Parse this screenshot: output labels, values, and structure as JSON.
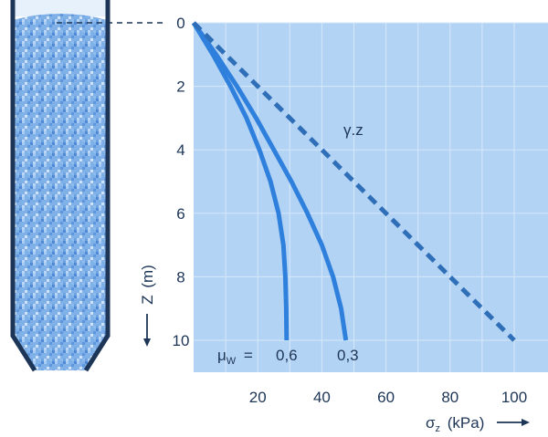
{
  "chart_data": {
    "type": "line",
    "title": "",
    "xlabel": {
      "symbol": "σ",
      "subscript": "z",
      "unit": "(kPa)"
    },
    "ylabel": {
      "symbol": "Z",
      "unit": "(m)"
    },
    "xlim": [
      0,
      105
    ],
    "ylim": [
      0,
      10
    ],
    "y_inverted": true,
    "grid": true,
    "x_ticks": [
      20,
      40,
      60,
      80,
      100
    ],
    "y_ticks": [
      0,
      2,
      4,
      6,
      8,
      10
    ],
    "legend": {
      "symbol": "μ",
      "subscript": "W",
      "equals": "="
    },
    "series": [
      {
        "name": "0,6",
        "style": "solid",
        "color": "#2f80dd",
        "x": [
          0,
          6,
          11.5,
          16.5,
          20.5,
          24,
          26.5,
          28,
          28.6,
          28.9,
          29
        ],
        "y": [
          0,
          1,
          2,
          3,
          4,
          5,
          6,
          7,
          8,
          9,
          10
        ]
      },
      {
        "name": "0,3",
        "style": "solid",
        "color": "#2f80dd",
        "x": [
          0,
          7,
          13.5,
          19.5,
          25,
          30.5,
          35.5,
          40,
          43.5,
          46,
          47.5
        ],
        "y": [
          0,
          1,
          2,
          3,
          4,
          5,
          6,
          7,
          8,
          9,
          10
        ]
      },
      {
        "name": "γ.z",
        "style": "dashed",
        "color": "#2f6fb8",
        "x": [
          0,
          100
        ],
        "y": [
          0,
          10
        ]
      }
    ]
  },
  "colors": {
    "plot_bg": "#b3d3f5",
    "grid": "#d6e8fb",
    "curve": "#2f80dd",
    "dashed": "#2f6fb8",
    "text": "#1d3557",
    "silo_wall": "#1d3557"
  }
}
